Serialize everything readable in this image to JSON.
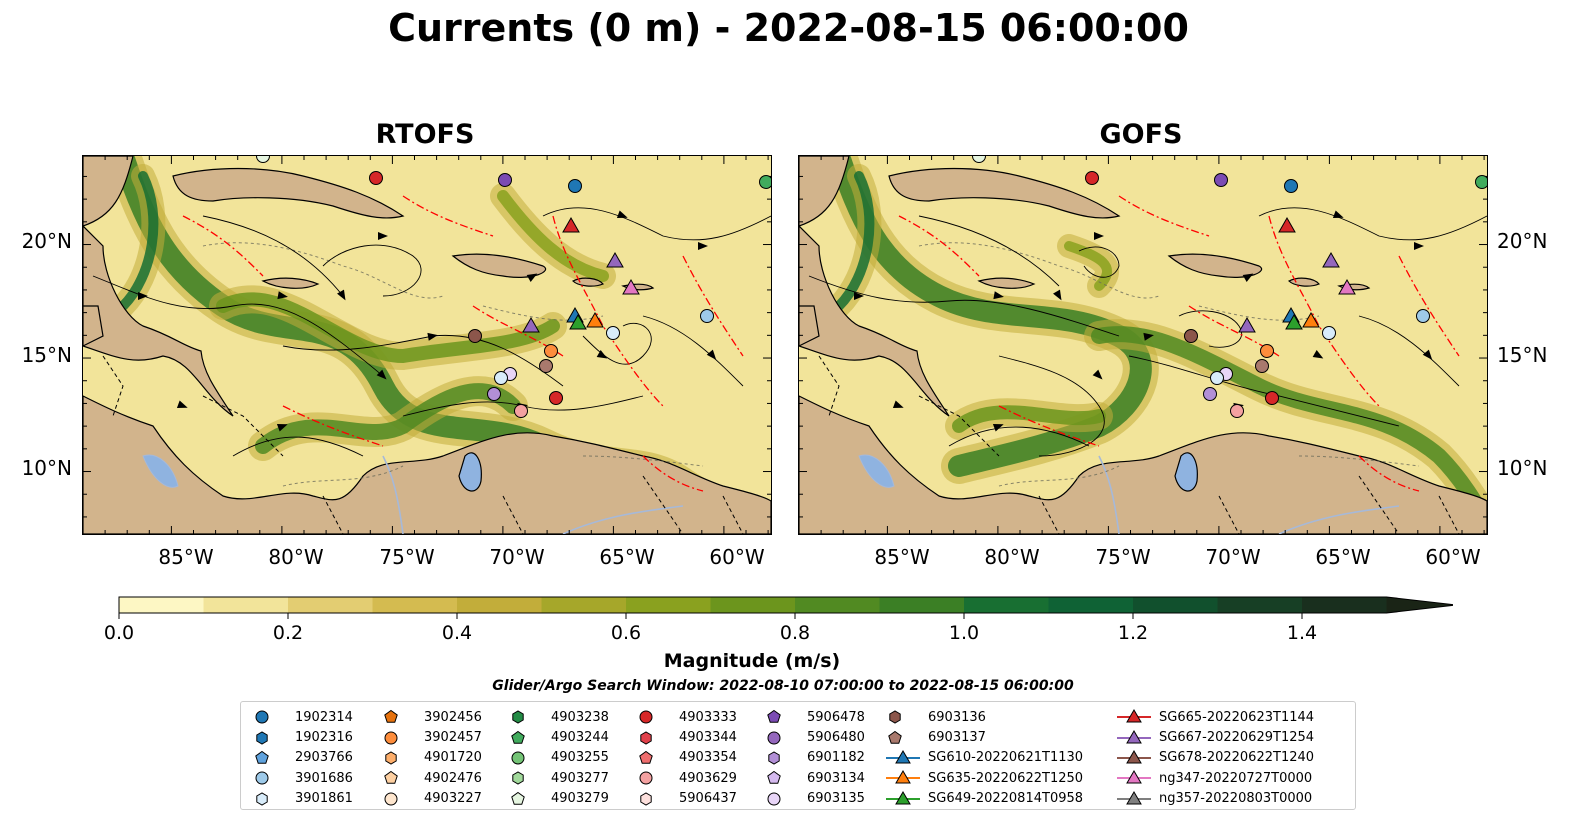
{
  "title": "Currents (0 m) - 2022-08-15 06:00:00",
  "panels": [
    {
      "title": "RTOFS"
    },
    {
      "title": "GOFS"
    }
  ],
  "lat_ticks": [
    "20°N",
    "15°N",
    "10°N"
  ],
  "lon_ticks": [
    "85°W",
    "80°W",
    "75°W",
    "70°W",
    "65°W",
    "60°W"
  ],
  "colorbar": {
    "label": "Magnitude (m/s)",
    "ticks": [
      "0.0",
      "0.2",
      "0.4",
      "0.6",
      "0.8",
      "1.0",
      "1.2",
      "1.4"
    ],
    "colors": [
      "#fdf7c4",
      "#f2e49a",
      "#e3cd72",
      "#d4bb50",
      "#c2ad3a",
      "#a6a72a",
      "#8aa11f",
      "#6c951d",
      "#518a22",
      "#3b7f25",
      "#186f32",
      "#0f6235",
      "#11502d",
      "#173f25",
      "#192f1e",
      "#1a2416"
    ]
  },
  "search_window": "Glider/Argo Search Window: 2022-08-10 07:00:00 to 2022-08-15 06:00:00",
  "legend": {
    "columns": [
      [
        {
          "label": "1902314",
          "marker": "circle",
          "color": "#1f77b4"
        },
        {
          "label": "1902316",
          "marker": "hexagon",
          "color": "#1f77b4"
        },
        {
          "label": "2903766",
          "marker": "pentagon",
          "color": "#5fa2dd"
        },
        {
          "label": "3901686",
          "marker": "circle",
          "color": "#9ecae9"
        },
        {
          "label": "3901861",
          "marker": "hexagon",
          "color": "#d8ecfa"
        }
      ],
      [
        {
          "label": "3902456",
          "marker": "pentagon",
          "color": "#e6720e"
        },
        {
          "label": "3902457",
          "marker": "circle",
          "color": "#fd8d3c"
        },
        {
          "label": "4901720",
          "marker": "hexagon",
          "color": "#fdae6b"
        },
        {
          "label": "4902476",
          "marker": "pentagon",
          "color": "#fdd0a2"
        },
        {
          "label": "4903227",
          "marker": "circle",
          "color": "#fee6ce"
        }
      ],
      [
        {
          "label": "4903238",
          "marker": "hexagon",
          "color": "#238b45"
        },
        {
          "label": "4903244",
          "marker": "pentagon",
          "color": "#41ab5d"
        },
        {
          "label": "4903255",
          "marker": "circle",
          "color": "#74c476"
        },
        {
          "label": "4903277",
          "marker": "hexagon",
          "color": "#a1d99b"
        },
        {
          "label": "4903279",
          "marker": "pentagon",
          "color": "#e5f5e0"
        }
      ],
      [
        {
          "label": "4903333",
          "marker": "circle",
          "color": "#d62728"
        },
        {
          "label": "4903344",
          "marker": "hexagon",
          "color": "#e0404a"
        },
        {
          "label": "4903354",
          "marker": "pentagon",
          "color": "#ef6e6e"
        },
        {
          "label": "4903629",
          "marker": "circle",
          "color": "#f4a1a1"
        },
        {
          "label": "5906437",
          "marker": "hexagon",
          "color": "#fde0dd"
        }
      ],
      [
        {
          "label": "5906478",
          "marker": "pentagon",
          "color": "#7b4bb3"
        },
        {
          "label": "5906480",
          "marker": "circle",
          "color": "#9467bd"
        },
        {
          "label": "6901182",
          "marker": "hexagon",
          "color": "#b28fd6"
        },
        {
          "label": "6903134",
          "marker": "pentagon",
          "color": "#d4b9ee"
        },
        {
          "label": "6903135",
          "marker": "circle",
          "color": "#e8d5f7"
        }
      ],
      [
        {
          "label": "6903136",
          "marker": "hexagon",
          "color": "#8c564b"
        },
        {
          "label": "6903137",
          "marker": "pentagon",
          "color": "#a9796d"
        },
        {
          "label": "SG610-20220621T1130",
          "marker": "triangle-line",
          "color": "#1f77b4"
        },
        {
          "label": "SG635-20220622T1250",
          "marker": "triangle-line",
          "color": "#ff7f0e"
        },
        {
          "label": "SG649-20220814T0958",
          "marker": "triangle-line",
          "color": "#2ca02c"
        }
      ],
      [
        {
          "label": "SG665-20220623T1144",
          "marker": "triangle-line",
          "color": "#d62728"
        },
        {
          "label": "SG667-20220629T1254",
          "marker": "triangle-line",
          "color": "#9467bd"
        },
        {
          "label": "SG678-20220622T1240",
          "marker": "triangle-line",
          "color": "#8c564b"
        },
        {
          "label": "ng347-20220727T0000",
          "marker": "triangle-line",
          "color": "#e377c2"
        },
        {
          "label": "ng357-20220803T0000",
          "marker": "triangle-line",
          "color": "#7f7f7f"
        }
      ]
    ]
  },
  "map_colors": {
    "land": "#d2b48c",
    "ocean_base": "#f2e49a",
    "track": "#ff0000",
    "lake": "#8fb3e0",
    "river": "#a6b9d9",
    "streamline": "#000000"
  }
}
